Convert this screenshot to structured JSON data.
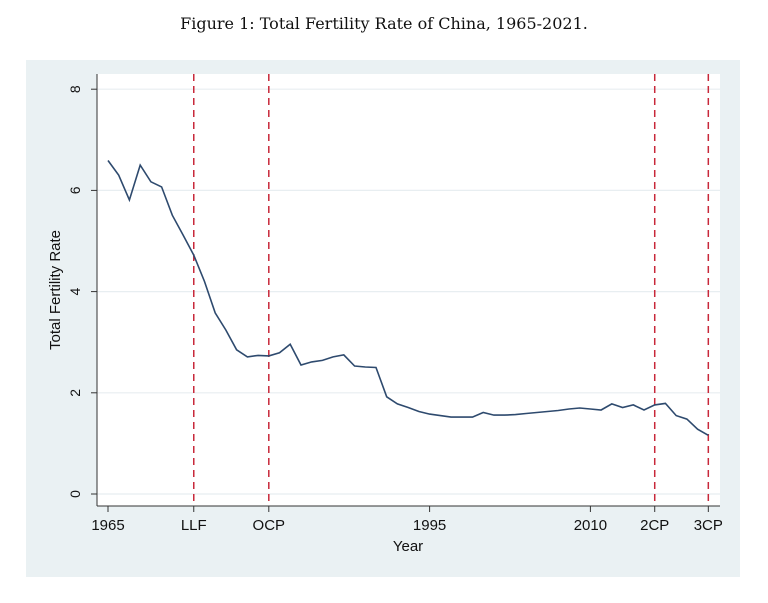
{
  "chart_data": {
    "type": "line",
    "title": "Figure 1: Total Fertility Rate of China, 1965-2021.",
    "xlabel": "Year",
    "ylabel": "Total Fertility Rate",
    "xlim": [
      1964,
      2022
    ],
    "ylim": [
      0,
      8
    ],
    "yticks": [
      0,
      2,
      4,
      6,
      8
    ],
    "xticks": [
      {
        "value": 1965,
        "label": "1965"
      },
      {
        "value": 1973,
        "label": "LLF"
      },
      {
        "value": 1980,
        "label": "OCP"
      },
      {
        "value": 1995,
        "label": "1995"
      },
      {
        "value": 2010,
        "label": "2010"
      },
      {
        "value": 2016,
        "label": "2CP"
      },
      {
        "value": 2021,
        "label": "3CP"
      }
    ],
    "policy_lines": [
      1973,
      1980,
      2016,
      2021
    ],
    "grid": true,
    "colors": {
      "line": "#2e4a6e",
      "policy": "#c8283a",
      "background": "#eaf1f3",
      "grid": "#e8eef1"
    },
    "x": [
      1965,
      1966,
      1967,
      1968,
      1969,
      1970,
      1971,
      1972,
      1973,
      1974,
      1975,
      1976,
      1977,
      1978,
      1979,
      1980,
      1981,
      1982,
      1983,
      1984,
      1985,
      1986,
      1987,
      1988,
      1989,
      1990,
      1991,
      1992,
      1993,
      1994,
      1995,
      1996,
      1997,
      1998,
      1999,
      2000,
      2001,
      2002,
      2003,
      2004,
      2005,
      2006,
      2007,
      2008,
      2009,
      2010,
      2011,
      2012,
      2013,
      2014,
      2015,
      2016,
      2017,
      2018,
      2019,
      2020,
      2021
    ],
    "y": [
      6.59,
      6.3,
      5.81,
      6.5,
      6.17,
      6.07,
      5.51,
      5.12,
      4.72,
      4.2,
      3.58,
      3.24,
      2.85,
      2.71,
      2.74,
      2.73,
      2.79,
      2.96,
      2.55,
      2.61,
      2.64,
      2.71,
      2.75,
      2.53,
      2.51,
      2.5,
      1.92,
      1.78,
      1.71,
      1.63,
      1.58,
      1.55,
      1.52,
      1.52,
      1.52,
      1.61,
      1.56,
      1.56,
      1.57,
      1.59,
      1.61,
      1.63,
      1.65,
      1.68,
      1.7,
      1.68,
      1.66,
      1.78,
      1.71,
      1.76,
      1.66,
      1.76,
      1.79,
      1.55,
      1.48,
      1.28,
      1.16
    ]
  }
}
